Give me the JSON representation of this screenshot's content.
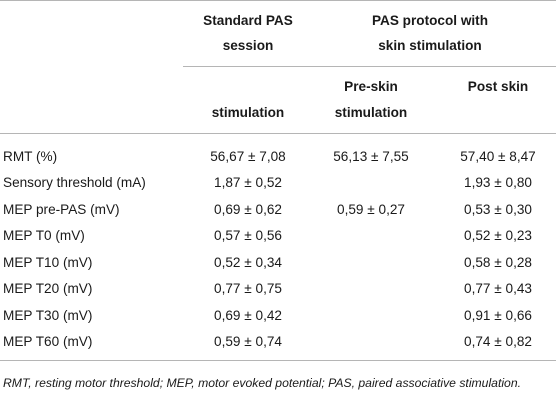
{
  "table": {
    "headers": {
      "standard_pas_line1": "Standard PAS",
      "standard_pas_line2": "session",
      "protocol_line1": "PAS protocol with",
      "protocol_line2": "skin stimulation",
      "col1_sub": "stimulation",
      "col2_sub_line1": "Pre-skin",
      "col2_sub_line2": "stimulation",
      "col3_sub": "Post skin"
    },
    "rows": [
      {
        "label": "RMT (%)",
        "standard": "56,67 ± 7,08",
        "pre": "56,13 ± 7,55",
        "post": "57,40 ± 8,47"
      },
      {
        "label": "Sensory threshold (mA)",
        "standard": "1,87 ± 0,52",
        "pre": "",
        "post": "1,93 ± 0,80"
      },
      {
        "label": "MEP pre-PAS (mV)",
        "standard": "0,69 ± 0,62",
        "pre": "0,59 ± 0,27",
        "post": "0,53 ± 0,30"
      },
      {
        "label": "MEP T0 (mV)",
        "standard": "0,57 ± 0,56",
        "pre": "",
        "post": "0,52 ± 0,23"
      },
      {
        "label": "MEP T10 (mV)",
        "standard": "0,52 ± 0,34",
        "pre": "",
        "post": "0,58 ± 0,28"
      },
      {
        "label": "MEP T20 (mV)",
        "standard": "0,77 ± 0,75",
        "pre": "",
        "post": "0,77 ± 0,43"
      },
      {
        "label": "MEP T30 (mV)",
        "standard": "0,69 ± 0,42",
        "pre": "",
        "post": "0,91 ± 0,66"
      },
      {
        "label": "MEP T60 (mV)",
        "standard": "0,59 ± 0,74",
        "pre": "",
        "post": "0,74 ± 0,82"
      }
    ]
  },
  "footnote": "RMT, resting motor threshold; MEP, motor evoked potential; PAS, paired associative stimulation."
}
